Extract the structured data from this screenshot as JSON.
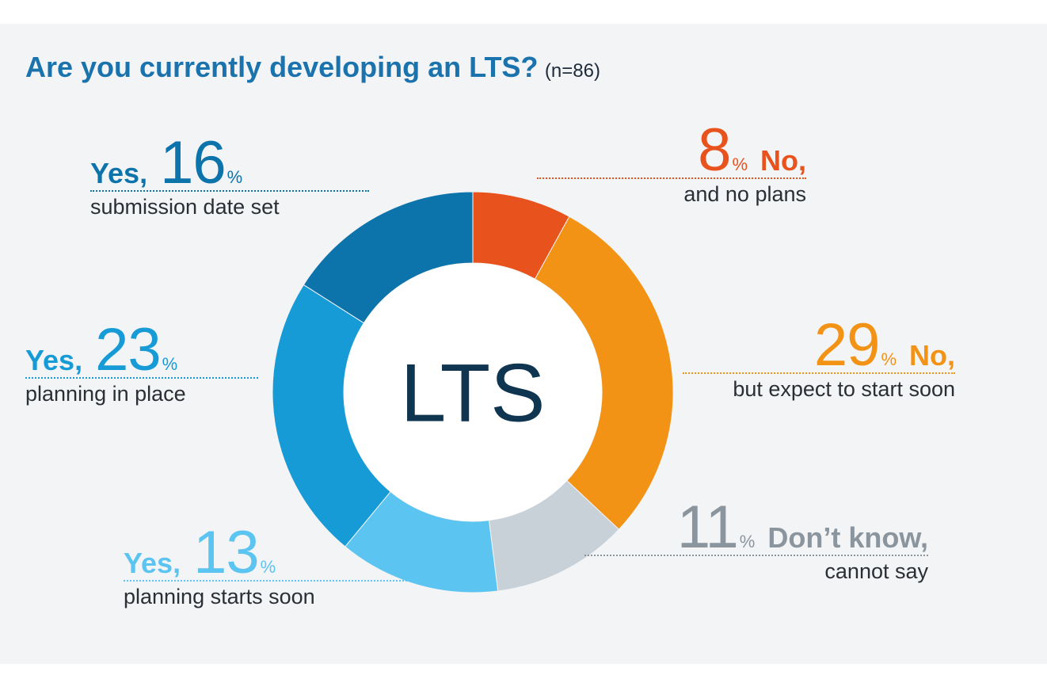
{
  "title": {
    "main": "Are you currently developing an LTS?",
    "sub": "(n=86)"
  },
  "center_label": "LTS",
  "labels": {
    "yes_date": {
      "word": "Yes,",
      "num": "16",
      "pct": "%",
      "desc": "submission date set"
    },
    "yes_planning": {
      "word": "Yes,",
      "num": "23",
      "pct": "%",
      "desc": "planning in place"
    },
    "yes_soon": {
      "word": "Yes,",
      "num": "13",
      "pct": "%",
      "desc": "planning starts soon"
    },
    "no_plans": {
      "word": "No,",
      "num": "8",
      "pct": "%",
      "desc": "and no plans"
    },
    "no_expect": {
      "word": "No,",
      "num": "29",
      "pct": "%",
      "desc": "but expect to start soon"
    },
    "dont_know": {
      "word": "Don’t know,",
      "num": "11",
      "pct": "%",
      "desc": "cannot say"
    }
  },
  "chart_data": {
    "type": "pie",
    "donut": true,
    "title": "Are you currently developing an LTS?",
    "subtitle": "(n=86)",
    "center_text": "LTS",
    "unit": "%",
    "slices": [
      {
        "id": "no_plans",
        "label": "No, and no plans",
        "value": 8,
        "color": "#e8521d"
      },
      {
        "id": "no_expect",
        "label": "No, but expect to start soon",
        "value": 29,
        "color": "#f39316"
      },
      {
        "id": "dont_know",
        "label": "Don’t know, cannot say",
        "value": 11,
        "color": "#c8d1d8"
      },
      {
        "id": "yes_soon",
        "label": "Yes, planning starts soon",
        "value": 13,
        "color": "#5bc4f0"
      },
      {
        "id": "yes_planning",
        "label": "Yes, planning in place",
        "value": 23,
        "color": "#169bd7"
      },
      {
        "id": "yes_date",
        "label": "Yes, submission date set",
        "value": 16,
        "color": "#0c73ab"
      }
    ]
  }
}
